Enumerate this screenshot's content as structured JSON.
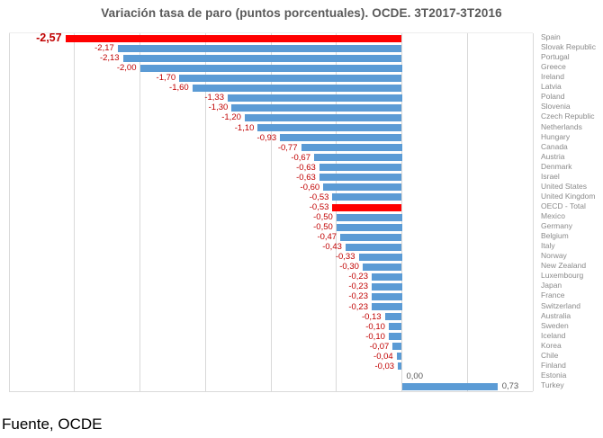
{
  "title": "Variación tasa de paro (puntos porcentuales). OCDE. 3T2017-3T2016",
  "source": "Fuente, OCDE",
  "colors": {
    "bar_default": "#5B9BD5",
    "bar_highlight": "#FF0000",
    "label_negative": "#C00000",
    "label_nonnegative": "#595959",
    "title_text": "#595959",
    "category_text": "#8A8A8A",
    "gridline": "#D9D9D9"
  },
  "chart_data": {
    "type": "bar",
    "orientation": "horizontal",
    "title": "Variación tasa de paro (puntos porcentuales). OCDE. 3T2017-3T2016",
    "xlabel": "",
    "ylabel": "",
    "xlim": [
      -3.0,
      1.0
    ],
    "grid_step": 0.5,
    "grid": true,
    "legend": false,
    "axis_tick_labels_visible": false,
    "categories": [
      "Spain",
      "Slovak Republic",
      "Portugal",
      "Greece",
      "Ireland",
      "Latvia",
      "Poland",
      "Slovenia",
      "Czech Republic",
      "Netherlands",
      "Hungary",
      "Canada",
      "Austria",
      "Denmark",
      "Israel",
      "United States",
      "United Kingdom",
      "OECD - Total",
      "Mexico",
      "Germany",
      "Belgium",
      "Italy",
      "Norway",
      "New Zealand",
      "Luxembourg",
      "Japan",
      "France",
      "Switzerland",
      "Australia",
      "Sweden",
      "Iceland",
      "Korea",
      "Chile",
      "Finland",
      "Estonia",
      "Turkey"
    ],
    "values": [
      -2.57,
      -2.17,
      -2.13,
      -2.0,
      -1.7,
      -1.6,
      -1.33,
      -1.3,
      -1.2,
      -1.1,
      -0.93,
      -0.77,
      -0.67,
      -0.63,
      -0.63,
      -0.6,
      -0.53,
      -0.53,
      -0.5,
      -0.5,
      -0.47,
      -0.43,
      -0.33,
      -0.3,
      -0.23,
      -0.23,
      -0.23,
      -0.23,
      -0.13,
      -0.1,
      -0.1,
      -0.07,
      -0.04,
      -0.03,
      0.0,
      0.73
    ],
    "value_labels": [
      "-2,57",
      "-2,17",
      "-2,13",
      "-2,00",
      "-1,70",
      "-1,60",
      "-1,33",
      "-1,30",
      "-1,20",
      "-1,10",
      "-0,93",
      "-0,77",
      "-0,67",
      "-0,63",
      "-0,63",
      "-0,60",
      "-0,53",
      "-0,53",
      "-0,50",
      "-0,50",
      "-0,47",
      "-0,43",
      "-0,33",
      "-0,30",
      "-0,23",
      "-0,23",
      "-0,23",
      "-0,23",
      "-0,13",
      "-0,10",
      "-0,10",
      "-0,07",
      "-0,04",
      "-0,03",
      "0,00",
      "0,73"
    ],
    "highlighted_indices": [
      0,
      17
    ],
    "emphasized_label_index": 0
  }
}
